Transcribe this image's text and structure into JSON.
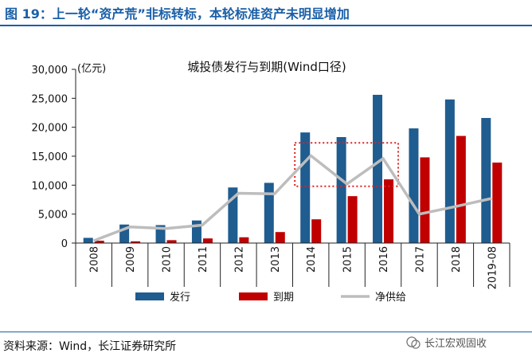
{
  "header": {
    "title": "图 19：上一轮“资产荒”非标转标，本轮标准资产未明显增加"
  },
  "footer": {
    "source": "资料来源：Wind，长江证券研究所",
    "watermark": "长江宏观固收"
  },
  "chart_data": {
    "type": "bar",
    "title": "城投债发行与到期(Wind口径)",
    "unit": "(亿元)",
    "categories": [
      "2008",
      "2009",
      "2010",
      "2011",
      "2012",
      "2013",
      "2014",
      "2015",
      "2016",
      "2017",
      "2018",
      "2019-08"
    ],
    "series": [
      {
        "name": "发行",
        "type": "bar",
        "color": "#1f5c8f",
        "values": [
          900,
          3200,
          3100,
          3900,
          9600,
          10400,
          19100,
          18300,
          25600,
          19800,
          24800,
          21600
        ]
      },
      {
        "name": "到期",
        "type": "bar",
        "color": "#c00000",
        "values": [
          400,
          300,
          500,
          800,
          1000,
          1900,
          4100,
          8100,
          11000,
          14800,
          18500,
          13900
        ]
      },
      {
        "name": "净供给",
        "type": "line",
        "color": "#bdbdbd",
        "values": [
          400,
          2800,
          2500,
          3100,
          8600,
          8500,
          15100,
          10200,
          14600,
          5000,
          6300,
          7700
        ]
      }
    ],
    "ylim": [
      0,
      30000
    ],
    "yticks": [
      "0",
      "5,000",
      "10,000",
      "15,000",
      "20,000",
      "25,000",
      "30,000"
    ],
    "highlight": {
      "from_category": "2014",
      "to_category": "2016",
      "ymin": 9800,
      "ymax": 17300,
      "style": "dotted",
      "color": "#e02020"
    },
    "legend_position": "bottom"
  }
}
